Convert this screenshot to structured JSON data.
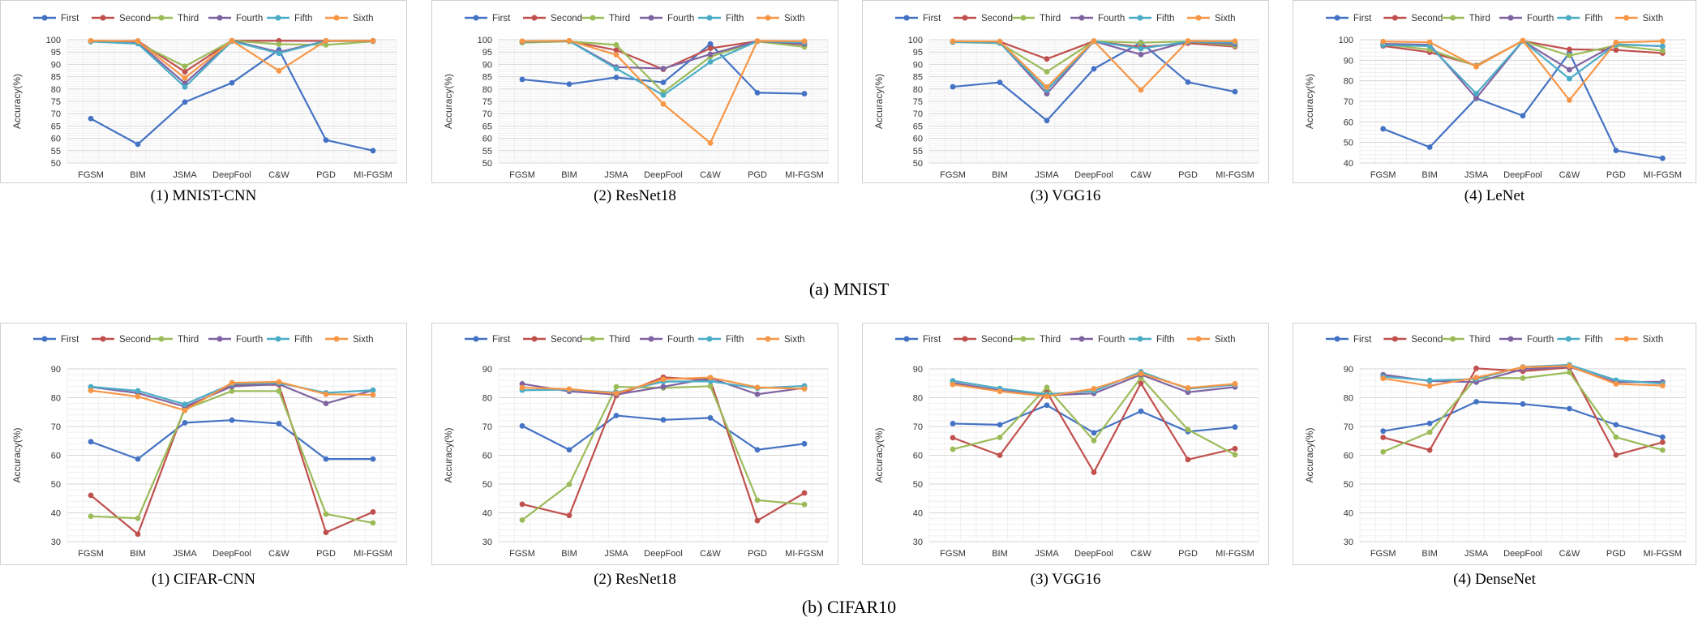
{
  "colors": {
    "First": "#4472c4",
    "Second": "#c0504d",
    "Third": "#9bbb59",
    "Fourth": "#8064a2",
    "Fifth": "#4bacc6",
    "Sixth": "#f79646"
  },
  "row_captions": [
    "(a) MNIST",
    "(b) CIFAR10"
  ],
  "chart_data": [
    {
      "type": "line",
      "title": "(1) MNIST-CNN",
      "ylabel": "Accuracy(%)",
      "xlabel": "",
      "ylim": [
        50,
        100
      ],
      "ystep": 5,
      "grid": true,
      "legend": "top",
      "categories": [
        "FGSM",
        "BIM",
        "JSMA",
        "DeepFool",
        "C&W",
        "PGD",
        "MI-FGSM"
      ],
      "series": [
        {
          "name": "First",
          "values": [
            68.0,
            57.6,
            74.7,
            82.5,
            95.9,
            59.3,
            55.0
          ]
        },
        {
          "name": "Second",
          "values": [
            99.4,
            99.5,
            87.0,
            99.6,
            99.6,
            99.5,
            99.6
          ]
        },
        {
          "name": "Third",
          "values": [
            99.3,
            98.6,
            89.2,
            99.6,
            98.2,
            97.9,
            99.3
          ]
        },
        {
          "name": "Fourth",
          "values": [
            99.4,
            98.9,
            82.3,
            99.6,
            95.0,
            99.5,
            99.5
          ]
        },
        {
          "name": "Fifth",
          "values": [
            99.2,
            98.4,
            80.8,
            99.4,
            94.5,
            99.5,
            99.4
          ]
        },
        {
          "name": "Sixth",
          "values": [
            99.6,
            99.4,
            84.5,
            99.6,
            87.4,
            99.6,
            99.5
          ]
        }
      ]
    },
    {
      "type": "line",
      "title": "(2) ResNet18",
      "ylabel": "Accuracy(%)",
      "xlabel": "",
      "ylim": [
        50,
        100
      ],
      "ystep": 5,
      "grid": true,
      "legend": "top",
      "categories": [
        "FGSM",
        "BIM",
        "JSMA",
        "DeepFool",
        "C&W",
        "PGD",
        "MI-FGSM"
      ],
      "series": [
        {
          "name": "First",
          "values": [
            83.9,
            82.0,
            84.7,
            82.7,
            98.3,
            78.5,
            78.1
          ]
        },
        {
          "name": "Second",
          "values": [
            99.3,
            99.5,
            95.8,
            88.0,
            96.5,
            99.4,
            98.0
          ]
        },
        {
          "name": "Third",
          "values": [
            98.8,
            99.3,
            97.9,
            78.7,
            93.1,
            99.3,
            97.1
          ]
        },
        {
          "name": "Fourth",
          "values": [
            99.2,
            99.5,
            88.9,
            88.3,
            94.1,
            99.4,
            98.3
          ]
        },
        {
          "name": "Fifth",
          "values": [
            99.3,
            99.5,
            88.3,
            77.5,
            91.0,
            99.4,
            98.9
          ]
        },
        {
          "name": "Sixth",
          "values": [
            99.4,
            99.6,
            93.9,
            73.9,
            58.1,
            99.5,
            99.4
          ]
        }
      ]
    },
    {
      "type": "line",
      "title": "(3) VGG16",
      "ylabel": "Accuracy(%)",
      "xlabel": "",
      "ylim": [
        50,
        100
      ],
      "ystep": 5,
      "grid": true,
      "legend": "top",
      "categories": [
        "FGSM",
        "BIM",
        "JSMA",
        "DeepFool",
        "C&W",
        "PGD",
        "MI-FGSM"
      ],
      "series": [
        {
          "name": "First",
          "values": [
            80.9,
            82.7,
            67.2,
            88.2,
            98.9,
            82.8,
            78.9
          ]
        },
        {
          "name": "Second",
          "values": [
            99.2,
            99.2,
            92.2,
            99.4,
            97.0,
            98.6,
            97.2
          ]
        },
        {
          "name": "Third",
          "values": [
            99.0,
            98.6,
            87.0,
            99.4,
            98.8,
            99.3,
            97.6
          ]
        },
        {
          "name": "Fourth",
          "values": [
            99.3,
            98.9,
            78.1,
            99.4,
            94.0,
            99.3,
            98.2
          ]
        },
        {
          "name": "Fifth",
          "values": [
            99.1,
            98.7,
            79.6,
            99.4,
            96.4,
            99.2,
            98.8
          ]
        },
        {
          "name": "Sixth",
          "values": [
            99.4,
            99.3,
            80.8,
            99.5,
            79.6,
            99.5,
            99.4
          ]
        }
      ]
    },
    {
      "type": "line",
      "title": "(4) LeNet",
      "ylabel": "Accuracy(%)",
      "xlabel": "",
      "ylim": [
        40,
        100
      ],
      "ystep": 10,
      "grid": true,
      "legend": "top",
      "categories": [
        "FGSM",
        "BIM",
        "JSMA",
        "DeepFool",
        "C&W",
        "PGD",
        "MI-FGSM"
      ],
      "series": [
        {
          "name": "First",
          "values": [
            56.6,
            47.7,
            71.5,
            63.0,
            93.6,
            46.1,
            42.3
          ]
        },
        {
          "name": "Second",
          "values": [
            97.0,
            93.9,
            87.5,
            99.4,
            95.3,
            95.0,
            93.5
          ]
        },
        {
          "name": "Third",
          "values": [
            97.8,
            95.2,
            87.3,
            99.4,
            92.3,
            97.2,
            94.6
          ]
        },
        {
          "name": "Fourth",
          "values": [
            98.0,
            97.6,
            71.6,
            99.4,
            85.4,
            97.8,
            96.8
          ]
        },
        {
          "name": "Fifth",
          "values": [
            97.4,
            96.9,
            73.8,
            99.4,
            81.0,
            97.7,
            96.9
          ]
        },
        {
          "name": "Sixth",
          "values": [
            99.1,
            98.8,
            86.9,
            99.6,
            70.6,
            98.7,
            99.3
          ]
        }
      ]
    },
    {
      "type": "line",
      "title": "(1) CIFAR-CNN",
      "ylabel": "Accuracy(%)",
      "xlabel": "",
      "ylim": [
        30,
        90
      ],
      "ystep": 10,
      "grid": true,
      "legend": "top",
      "categories": [
        "FGSM",
        "BIM",
        "JSMA",
        "DeepFool",
        "C&W",
        "PGD",
        "MI-FGSM"
      ],
      "series": [
        {
          "name": "First",
          "values": [
            64.7,
            58.7,
            71.3,
            72.2,
            71.0,
            58.7,
            58.7
          ]
        },
        {
          "name": "Second",
          "values": [
            46.1,
            32.6,
            76.5,
            84.4,
            84.5,
            33.2,
            40.3
          ]
        },
        {
          "name": "Third",
          "values": [
            38.8,
            38.1,
            76.0,
            82.3,
            82.3,
            39.6,
            36.5
          ]
        },
        {
          "name": "Fourth",
          "values": [
            83.7,
            81.6,
            76.9,
            83.9,
            84.7,
            78.0,
            82.6
          ]
        },
        {
          "name": "Fifth",
          "values": [
            83.8,
            82.4,
            77.7,
            84.8,
            85.1,
            81.7,
            82.6
          ]
        },
        {
          "name": "Sixth",
          "values": [
            82.5,
            80.4,
            75.6,
            85.2,
            85.5,
            81.2,
            81.0
          ]
        }
      ]
    },
    {
      "type": "line",
      "title": "(2) ResNet18",
      "ylabel": "Accuracy(%)",
      "xlabel": "",
      "ylim": [
        30,
        90
      ],
      "ystep": 10,
      "grid": true,
      "legend": "top",
      "categories": [
        "FGSM",
        "BIM",
        "JSMA",
        "DeepFool",
        "C&W",
        "PGD",
        "MI-FGSM"
      ],
      "series": [
        {
          "name": "First",
          "values": [
            70.2,
            61.9,
            73.8,
            72.3,
            73.0,
            61.9,
            64.0
          ]
        },
        {
          "name": "Second",
          "values": [
            43.0,
            39.1,
            80.7,
            87.1,
            86.1,
            37.3,
            46.9
          ]
        },
        {
          "name": "Third",
          "values": [
            37.5,
            49.9,
            83.8,
            83.4,
            84.0,
            44.4,
            42.9
          ]
        },
        {
          "name": "Fourth",
          "values": [
            84.8,
            82.2,
            81.1,
            83.8,
            86.8,
            81.2,
            83.4
          ]
        },
        {
          "name": "Fifth",
          "values": [
            82.6,
            82.8,
            81.8,
            85.6,
            85.7,
            83.3,
            84.1
          ]
        },
        {
          "name": "Sixth",
          "values": [
            83.5,
            83.0,
            81.5,
            86.4,
            87.0,
            83.6,
            83.1
          ]
        }
      ]
    },
    {
      "type": "line",
      "title": "(3) VGG16",
      "ylabel": "Accuracy(%)",
      "xlabel": "",
      "ylim": [
        30,
        90
      ],
      "ystep": 10,
      "grid": true,
      "legend": "top",
      "categories": [
        "FGSM",
        "BIM",
        "JSMA",
        "DeepFool",
        "C&W",
        "PGD",
        "MI-FGSM"
      ],
      "series": [
        {
          "name": "First",
          "values": [
            71.0,
            70.6,
            77.4,
            67.8,
            75.3,
            68.2,
            69.8
          ]
        },
        {
          "name": "Second",
          "values": [
            66.1,
            60.0,
            82.0,
            54.1,
            85.0,
            58.5,
            62.3
          ]
        },
        {
          "name": "Third",
          "values": [
            62.1,
            66.2,
            83.6,
            65.1,
            87.0,
            68.9,
            60.2
          ]
        },
        {
          "name": "Fourth",
          "values": [
            85.2,
            82.5,
            80.8,
            81.5,
            88.0,
            81.9,
            83.7
          ]
        },
        {
          "name": "Fifth",
          "values": [
            85.9,
            83.2,
            81.2,
            82.3,
            89.0,
            83.1,
            84.5
          ]
        },
        {
          "name": "Sixth",
          "values": [
            84.6,
            82.2,
            80.5,
            83.1,
            88.4,
            83.4,
            84.8
          ]
        }
      ]
    },
    {
      "type": "line",
      "title": "(4) DenseNet",
      "ylabel": "Accuracy(%)",
      "xlabel": "",
      "ylim": [
        30,
        90
      ],
      "ystep": 10,
      "grid": true,
      "legend": "top",
      "categories": [
        "FGSM",
        "BIM",
        "JSMA",
        "DeepFool",
        "C&W",
        "PGD",
        "MI-FGSM"
      ],
      "series": [
        {
          "name": "First",
          "values": [
            68.4,
            71.1,
            78.6,
            77.8,
            76.2,
            70.6,
            66.3
          ]
        },
        {
          "name": "Second",
          "values": [
            66.2,
            61.8,
            90.2,
            89.2,
            90.5,
            60.1,
            64.5
          ]
        },
        {
          "name": "Third",
          "values": [
            61.2,
            68.0,
            86.9,
            86.8,
            88.8,
            66.3,
            61.8
          ]
        },
        {
          "name": "Fourth",
          "values": [
            88.0,
            85.8,
            85.4,
            89.9,
            90.7,
            85.4,
            85.5
          ]
        },
        {
          "name": "Fifth",
          "values": [
            87.3,
            86.0,
            86.5,
            90.7,
            91.4,
            86.1,
            84.9
          ]
        },
        {
          "name": "Sixth",
          "values": [
            86.7,
            84.1,
            87.0,
            90.6,
            91.0,
            84.8,
            84.2
          ]
        }
      ]
    }
  ]
}
